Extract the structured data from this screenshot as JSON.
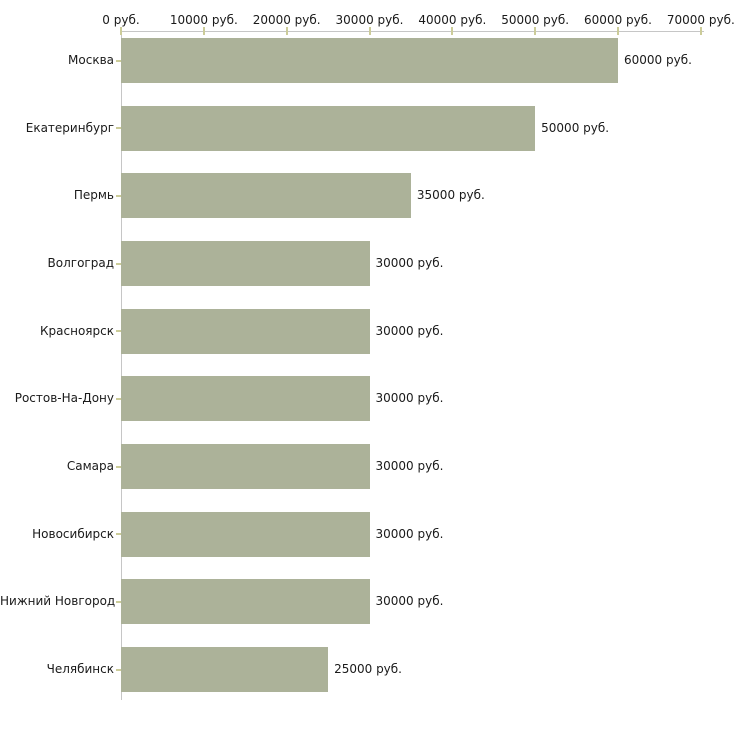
{
  "chart_data": {
    "type": "bar",
    "orientation": "horizontal",
    "title": "",
    "xlabel": "",
    "ylabel": "",
    "categories": [
      "Москва",
      "Екатеринбург",
      "Пермь",
      "Волгоград",
      "Красноярск",
      "Ростов-На-Дону",
      "Самара",
      "Новосибирск",
      "Нижний Новгород",
      "Челябинск"
    ],
    "values": [
      60000,
      50000,
      35000,
      30000,
      30000,
      30000,
      30000,
      30000,
      30000,
      25000
    ],
    "bar_value_labels": [
      "60000 руб.",
      "50000 руб.",
      "35000 руб.",
      "30000 руб.",
      "30000 руб.",
      "30000 руб.",
      "30000 руб.",
      "30000 руб.",
      "30000 руб.",
      "25000 руб."
    ],
    "x_ticks": [
      0,
      10000,
      20000,
      30000,
      40000,
      50000,
      60000,
      70000
    ],
    "x_tick_labels": [
      "0 руб.",
      "10000 руб.",
      "20000 руб.",
      "30000 руб.",
      "40000 руб.",
      "50000 руб.",
      "60000 руб.",
      "70000 руб."
    ],
    "xlim": [
      0,
      70000
    ],
    "unit_suffix": " руб.",
    "axis_position": "top",
    "grid": false,
    "legend": null,
    "colors": {
      "bar": "#acb299",
      "axis_line": "#c6c6c6",
      "tick": "#cccc99",
      "text": "#1a1a1a",
      "background": "#ffffff"
    }
  }
}
